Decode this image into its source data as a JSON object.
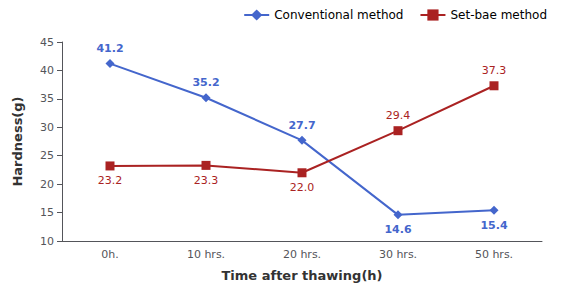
{
  "chart_data": {
    "type": "line",
    "xlabel": "Time after thawing(h)",
    "ylabel": "Hardness(g)",
    "categories": [
      "0h.",
      "10 hrs.",
      "20 hrs.",
      "30 hrs.",
      "50 hrs."
    ],
    "series": [
      {
        "name": "Conventional method",
        "color": "#4466CC",
        "marker": "diamond",
        "values": [
          41.2,
          35.2,
          27.7,
          14.6,
          15.4
        ]
      },
      {
        "name": "Set-bae method",
        "color": "#AA2222",
        "marker": "square",
        "values": [
          23.2,
          23.3,
          22.0,
          29.4,
          37.3
        ],
        "value_labels": [
          "23.2",
          "23.3",
          "22.0",
          "29.4",
          "37.3"
        ]
      }
    ],
    "ylim": [
      10,
      45
    ],
    "yticks": [
      10,
      15,
      20,
      25,
      30,
      35,
      40,
      45
    ],
    "grid": false,
    "legend": "upper right",
    "data_labels": true
  }
}
